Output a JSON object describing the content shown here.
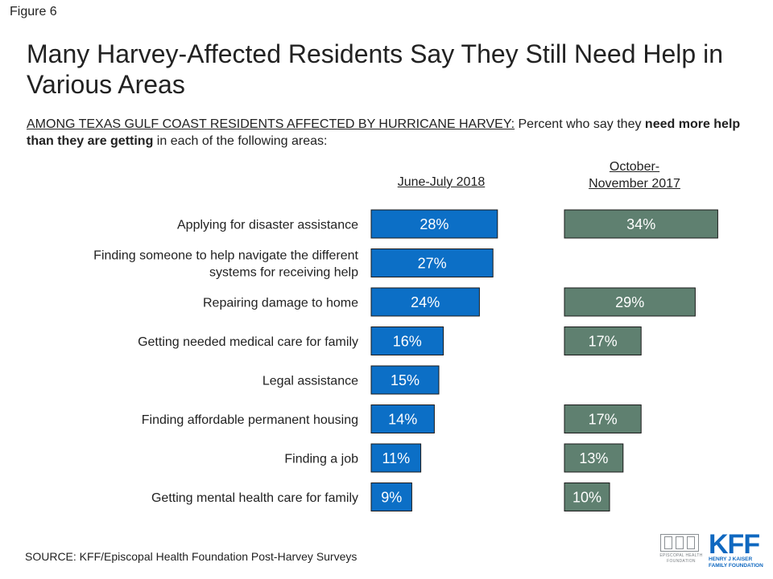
{
  "figure_label": "Figure 6",
  "title": "Many Harvey-Affected Residents Say They Still Need Help in Various Areas",
  "subtitle": {
    "lead_underlined": "AMONG TEXAS GULF COAST RESIDENTS AFFECTED BY HURRICANE HARVEY:",
    "part1": " Percent who say they ",
    "bold": "need more help than they are getting",
    "part2": " in each of the following areas:"
  },
  "source": "SOURCE: KFF/Episcopal Health Foundation Post-Harvey Surveys",
  "logos": {
    "ehf_text": "EPISCOPAL HEALTH FOUNDATION",
    "kff_mark": "KFF",
    "kff_text": "HENRY J KAISER FAMILY FOUNDATION"
  },
  "colors": {
    "series1": "#0c6fc6",
    "series2": "#5f8070",
    "bar_border": "#1a1a1a"
  },
  "chart_data": {
    "type": "bar",
    "orientation": "horizontal",
    "categories": [
      [
        "Applying for disaster assistance"
      ],
      [
        "Finding someone to help navigate the different",
        "systems for receiving help"
      ],
      [
        "Repairing damage to home"
      ],
      [
        "Getting needed medical care for family"
      ],
      [
        "Legal assistance"
      ],
      [
        "Finding affordable permanent housing"
      ],
      [
        "Finding a job"
      ],
      [
        "Getting mental health care for family"
      ]
    ],
    "series": [
      {
        "name": "June-July 2018",
        "values": [
          28,
          27,
          24,
          16,
          15,
          14,
          11,
          9
        ]
      },
      {
        "name": "October-November 2017",
        "name_lines": [
          "October-",
          "November 2017"
        ],
        "values": [
          34,
          null,
          29,
          17,
          null,
          17,
          13,
          10
        ]
      }
    ],
    "value_suffix": "%"
  }
}
